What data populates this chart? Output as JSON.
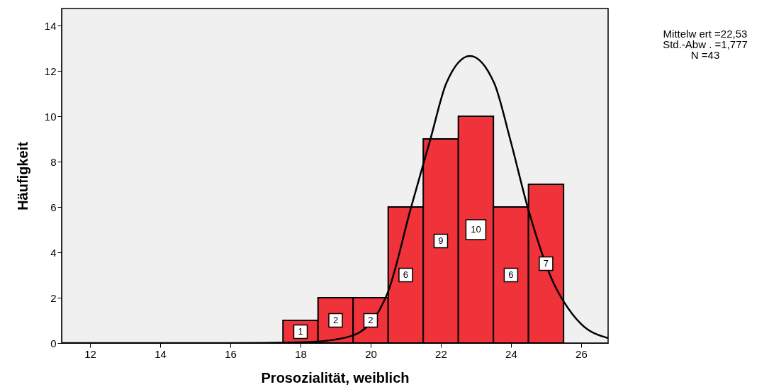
{
  "chart_data": {
    "type": "histogram",
    "xlabel": "Prosozialität, weiblich",
    "ylabel": "Häufigkeit",
    "annotations": [
      "Mittelw ert =22,53",
      "Std.-Abw . =1,777",
      "N =43"
    ],
    "series": [
      {
        "type": "histogram",
        "color": "#f0323a",
        "bins": [
          17.5,
          18.5,
          19.5,
          20.5,
          21.5,
          22.5,
          23.5,
          24.5,
          25.5
        ],
        "values": [
          1,
          2,
          2,
          6,
          9,
          10,
          6,
          7
        ],
        "value_labels": [
          "1",
          "2",
          "2",
          "6",
          "9",
          "10",
          "6",
          "7"
        ]
      },
      {
        "type": "line",
        "color": "#000000",
        "x": [
          11.19,
          16,
          17.98,
          18.46,
          19.5,
          20.48,
          21.15,
          21.7,
          22.16,
          22.83,
          23.52,
          23.98,
          24.48,
          25.25,
          25.5,
          26.0,
          26.77
        ],
        "values": [
          0,
          0,
          0.03,
          0.06,
          0.34,
          2.2,
          5.97,
          8.97,
          11.47,
          12.66,
          11.47,
          8.97,
          5.97,
          2.53,
          1.84,
          0.84,
          0.22
        ]
      }
    ],
    "xlim": [
      11.19,
      26.77
    ],
    "ylim": [
      0,
      14.75
    ],
    "xticks": [
      12,
      14,
      16,
      18,
      20,
      22,
      24,
      26
    ],
    "yticks": [
      0,
      2,
      4,
      6,
      8,
      10,
      12,
      14
    ],
    "grid": false,
    "line_style": "solid",
    "marker": "none"
  }
}
